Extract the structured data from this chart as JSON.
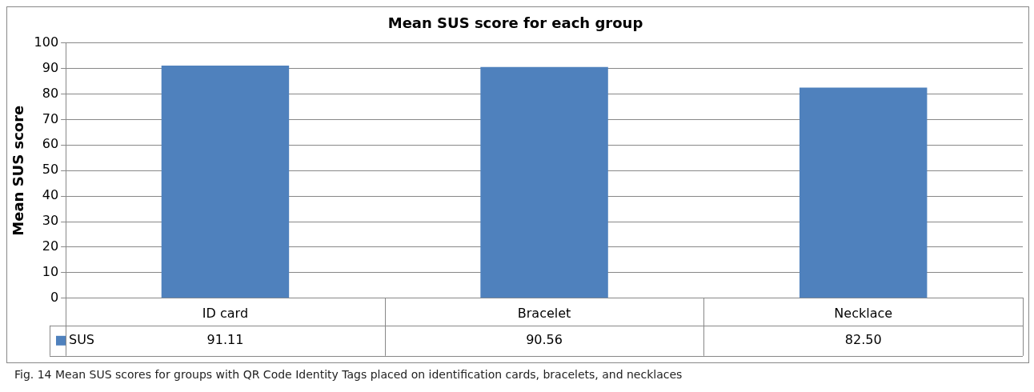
{
  "chart_data": {
    "type": "bar",
    "title": "Mean SUS score for each group",
    "ylabel": "Mean SUS score",
    "categories": [
      "ID card",
      "Bracelet",
      "Necklace"
    ],
    "series": [
      {
        "name": "SUS",
        "color": "#4f81bd",
        "values": [
          91.11,
          90.56,
          82.5
        ],
        "value_labels": [
          "91.11",
          "90.56",
          "82.50"
        ]
      }
    ],
    "ylim": [
      0,
      100
    ],
    "yticks": [
      0,
      10,
      20,
      30,
      40,
      50,
      60,
      70,
      80,
      90,
      100
    ],
    "grid": "y",
    "legend": "bottom",
    "annotations": [
      "Fig. 14  Mean SUS scores for groups with QR Code Identity Tags placed on identification cards, bracelets, and necklaces"
    ]
  }
}
